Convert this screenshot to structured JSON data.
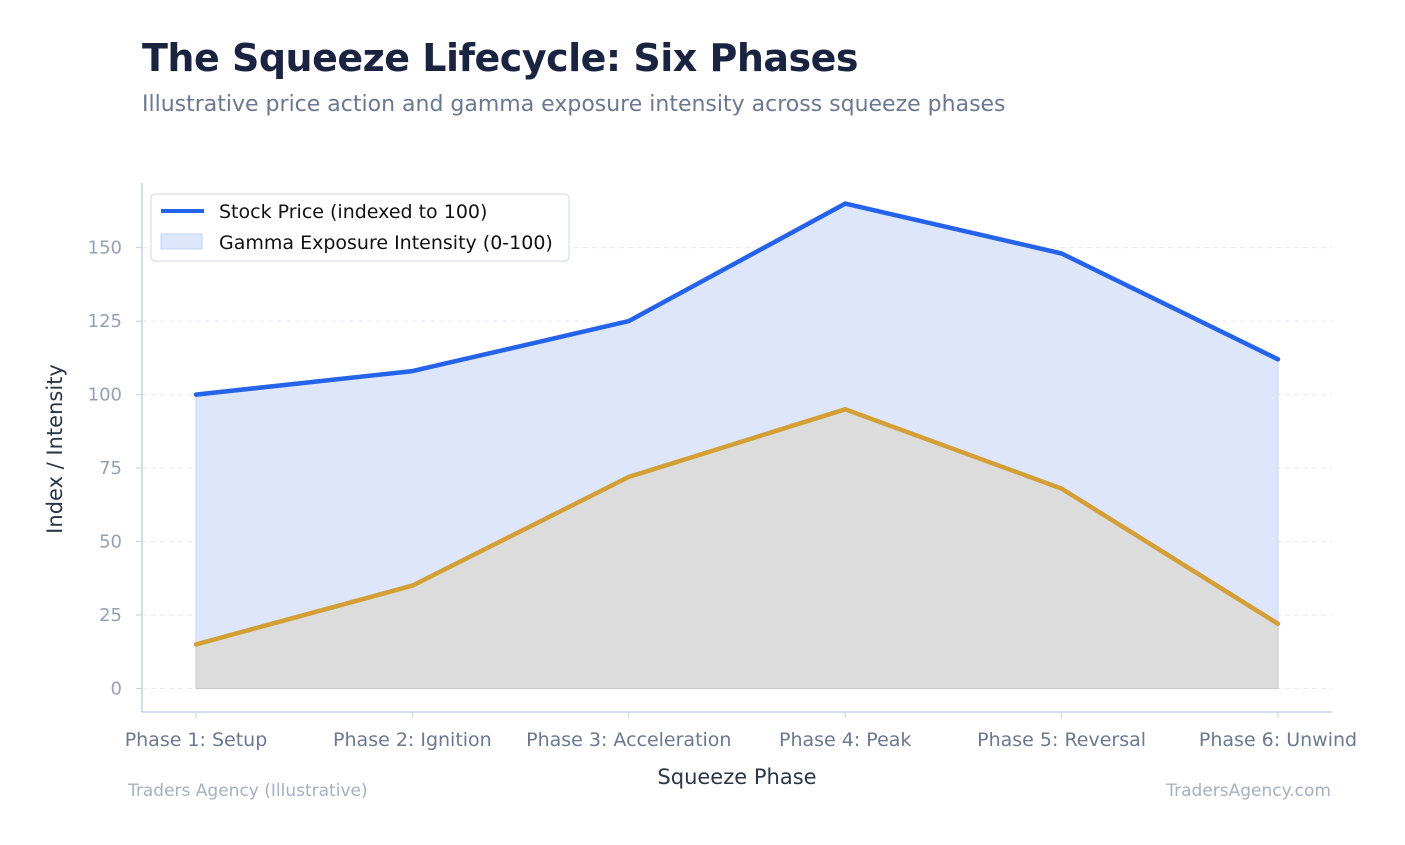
{
  "title": "The Squeeze Lifecycle: Six Phases",
  "subtitle": "Illustrative price action and gamma exposure intensity across squeeze phases",
  "footer": {
    "left": "Traders Agency (Illustrative)",
    "right": "TradersAgency.com"
  },
  "colors": {
    "price": "#2563eb",
    "price_fill": "#dde6fb",
    "gamma": "#d49f35",
    "gamma_fill": "#dbdbdb",
    "grid": "#e8ecf2",
    "axis": "#c9d1dd"
  },
  "chart_data": {
    "type": "line",
    "categories": [
      "Phase 1: Setup",
      "Phase 2: Ignition",
      "Phase 3: Acceleration",
      "Phase 4: Peak",
      "Phase 5: Reversal",
      "Phase 6: Unwind"
    ],
    "series": [
      {
        "name": "Stock Price (indexed to 100)",
        "values": [
          100,
          108,
          125,
          165,
          148,
          112
        ],
        "style": "line-with-area-fill"
      },
      {
        "name": "Gamma Exposure Intensity (0-100)",
        "values": [
          15,
          35,
          72,
          95,
          68,
          22
        ],
        "style": "line-with-area-fill"
      }
    ],
    "legend": [
      {
        "label": "Stock Price (indexed to 100)",
        "marker": "line"
      },
      {
        "label": "Gamma Exposure Intensity (0-100)",
        "marker": "area"
      }
    ],
    "legend_position": "top-left",
    "xlabel": "Squeeze Phase",
    "ylabel": "Index / Intensity",
    "yticks": [
      0,
      25,
      50,
      75,
      100,
      125,
      150
    ],
    "ylim": [
      -8,
      172
    ],
    "grid": true
  }
}
